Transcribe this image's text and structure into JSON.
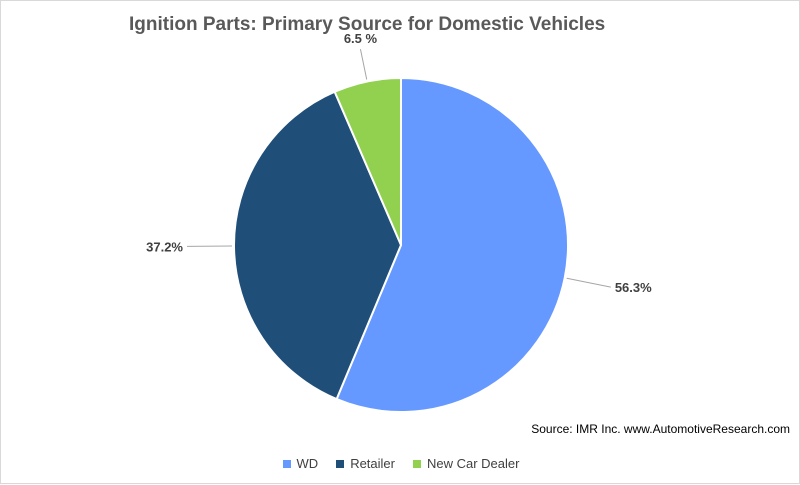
{
  "chart_data": {
    "type": "pie",
    "title": "Ignition Parts: Primary Source for Domestic Vehicles",
    "categories": [
      "WD",
      "Retailer",
      "New Car Dealer"
    ],
    "values": [
      56.3,
      37.2,
      6.5
    ],
    "data_labels": [
      "56.3%",
      "37.2%",
      "6.5 %"
    ],
    "colors": [
      "#6699ff",
      "#1f4e79",
      "#92d050"
    ],
    "legend_position": "bottom",
    "start_angle": "12 o'clock",
    "direction": "clockwise",
    "annotation": "Source: IMR Inc. www.AutomotiveResearch.com"
  }
}
